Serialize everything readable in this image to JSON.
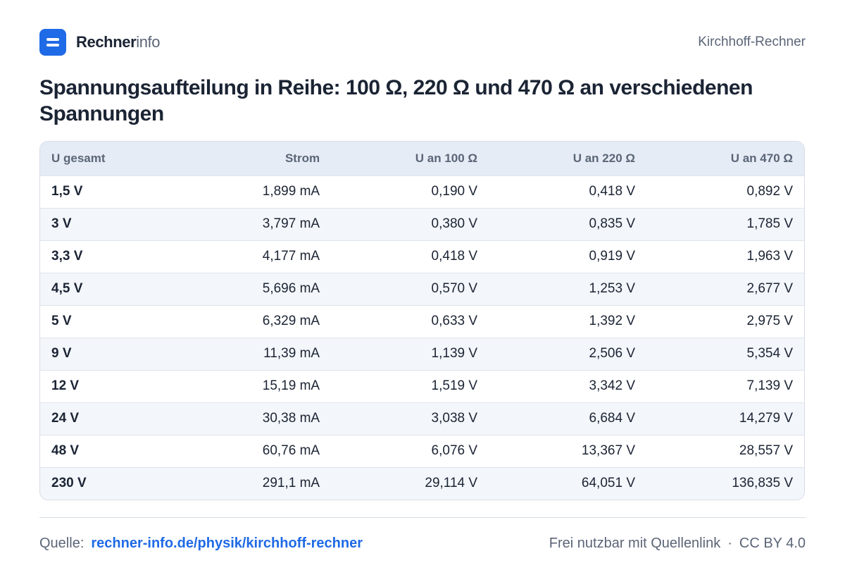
{
  "brand": {
    "name_bold": "Rechner",
    "name_light": "info"
  },
  "header": {
    "right": "Kirchhoff-Rechner"
  },
  "title": "Spannungsaufteilung in Reihe: 100 Ω, 220 Ω und 470 Ω an verschiedenen Spannungen",
  "table": {
    "columns": [
      "U gesamt",
      "Strom",
      "U an 100 Ω",
      "U an 220 Ω",
      "U an 470 Ω"
    ],
    "rows": [
      [
        "1,5 V",
        "1,899 mA",
        "0,190 V",
        "0,418 V",
        "0,892 V"
      ],
      [
        "3 V",
        "3,797 mA",
        "0,380 V",
        "0,835 V",
        "1,785 V"
      ],
      [
        "3,3 V",
        "4,177 mA",
        "0,418 V",
        "0,919 V",
        "1,963 V"
      ],
      [
        "4,5 V",
        "5,696 mA",
        "0,570 V",
        "1,253 V",
        "2,677 V"
      ],
      [
        "5 V",
        "6,329 mA",
        "0,633 V",
        "1,392 V",
        "2,975 V"
      ],
      [
        "9 V",
        "11,39 mA",
        "1,139 V",
        "2,506 V",
        "5,354 V"
      ],
      [
        "12 V",
        "15,19 mA",
        "1,519 V",
        "3,342 V",
        "7,139 V"
      ],
      [
        "24 V",
        "30,38 mA",
        "3,038 V",
        "6,684 V",
        "14,279 V"
      ],
      [
        "48 V",
        "60,76 mA",
        "6,076 V",
        "13,367 V",
        "28,557 V"
      ],
      [
        "230 V",
        "291,1 mA",
        "29,114 V",
        "64,051 V",
        "136,835 V"
      ]
    ]
  },
  "footer": {
    "source_label": "Quelle:",
    "source_link": "rechner-info.de/physik/kirchhoff-rechner",
    "license_note": "Frei nutzbar mit Quellenlink",
    "separator": "·",
    "license": "CC BY 4.0"
  },
  "colors": {
    "accent": "#1f6ae6",
    "text": "#1b2434",
    "muted": "#5b6577",
    "header_bg": "#e5ecf5",
    "stripe_bg": "#f3f6fa"
  },
  "icons": {
    "logo": "rechnerinfo-logo-icon"
  }
}
